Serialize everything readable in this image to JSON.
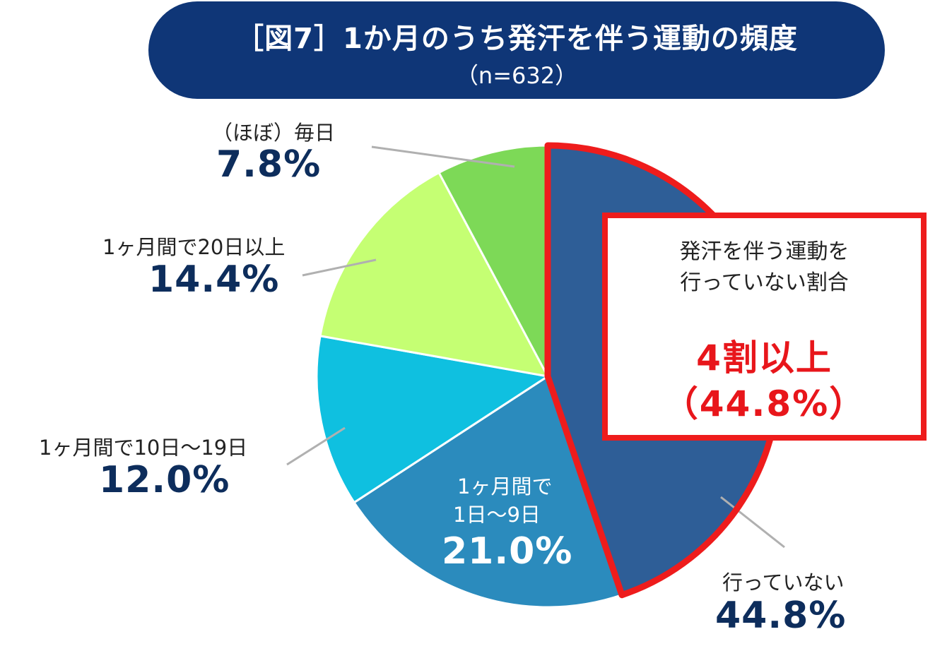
{
  "title": {
    "main": "［図7］1か月のうち発汗を伴う運動の頻度",
    "sub": "（n=632）"
  },
  "chart_data": {
    "type": "pie",
    "title": "［図7］1か月のうち発汗を伴う運動の頻度",
    "subtitle": "（n=632）",
    "slices": [
      {
        "label": "行っていない",
        "value": 44.8,
        "display": "44.8%",
        "color": "#2e5e97"
      },
      {
        "label": "1ヶ月間で1日～9日",
        "value": 21.0,
        "display": "21.0%",
        "color": "#2b8bbd"
      },
      {
        "label": "1ヶ月間で10日～19日",
        "value": 12.0,
        "display": "12.0%",
        "color": "#0fc0e0"
      },
      {
        "label": "1ヶ月間で20日以上",
        "value": 14.4,
        "display": "14.4%",
        "color": "#c5ff73"
      },
      {
        "label": "（ほぼ）毎日",
        "value": 7.8,
        "display": "7.8%",
        "color": "#7dd957"
      }
    ],
    "highlight_color": "#ee1c1c",
    "leader_color": "#b0b0b0"
  },
  "labels": {
    "never": {
      "line1": "行っていない",
      "value": "44.8%"
    },
    "m1_9": {
      "line1": "1ヶ月間で",
      "line2": "1日～9日",
      "value": "21.0%"
    },
    "m10_19": {
      "line1": "1ヶ月間で10日～19日",
      "value": "12.0%"
    },
    "m20": {
      "line1": "1ヶ月間で20日以上",
      "value": "14.4%"
    },
    "daily": {
      "line1": "（ほぼ）毎日",
      "value": "7.8%"
    }
  },
  "callout": {
    "line1": "発汗を伴う運動を",
    "line2": "行っていない割合",
    "big1": "4割以上",
    "big2": "（44.8%）"
  }
}
